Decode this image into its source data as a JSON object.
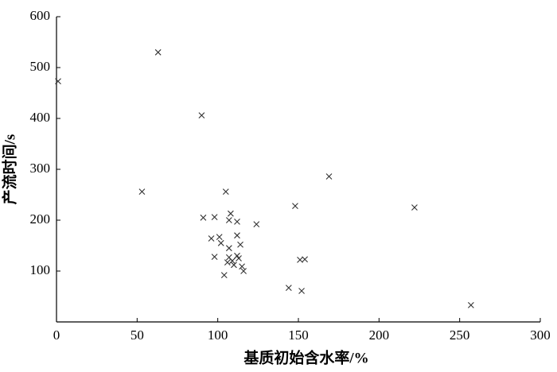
{
  "chart_data": {
    "type": "scatter",
    "x_label": "基质初始含水率/%",
    "y_label": "产流时间/s",
    "x": [
      1,
      63,
      90,
      53,
      105,
      169,
      148,
      222,
      257,
      91,
      98,
      108,
      107,
      112,
      124,
      96,
      101,
      102,
      112,
      114,
      107,
      98,
      107,
      109,
      112,
      113,
      106,
      110,
      115,
      116,
      104,
      144,
      152,
      151,
      154
    ],
    "values": [
      473,
      530,
      406,
      256,
      256,
      286,
      228,
      225,
      33,
      205,
      206,
      213,
      200,
      197,
      192,
      164,
      167,
      155,
      170,
      152,
      145,
      128,
      127,
      120,
      130,
      125,
      117,
      112,
      109,
      100,
      92,
      67,
      61,
      122,
      123
    ],
    "color": "#333333",
    "xlim": [
      0,
      300
    ],
    "xticks": [
      0,
      50,
      100,
      150,
      200,
      250,
      300
    ],
    "ylim": [
      0,
      600
    ],
    "yticks": [
      100,
      200,
      300,
      400,
      500,
      600
    ]
  }
}
